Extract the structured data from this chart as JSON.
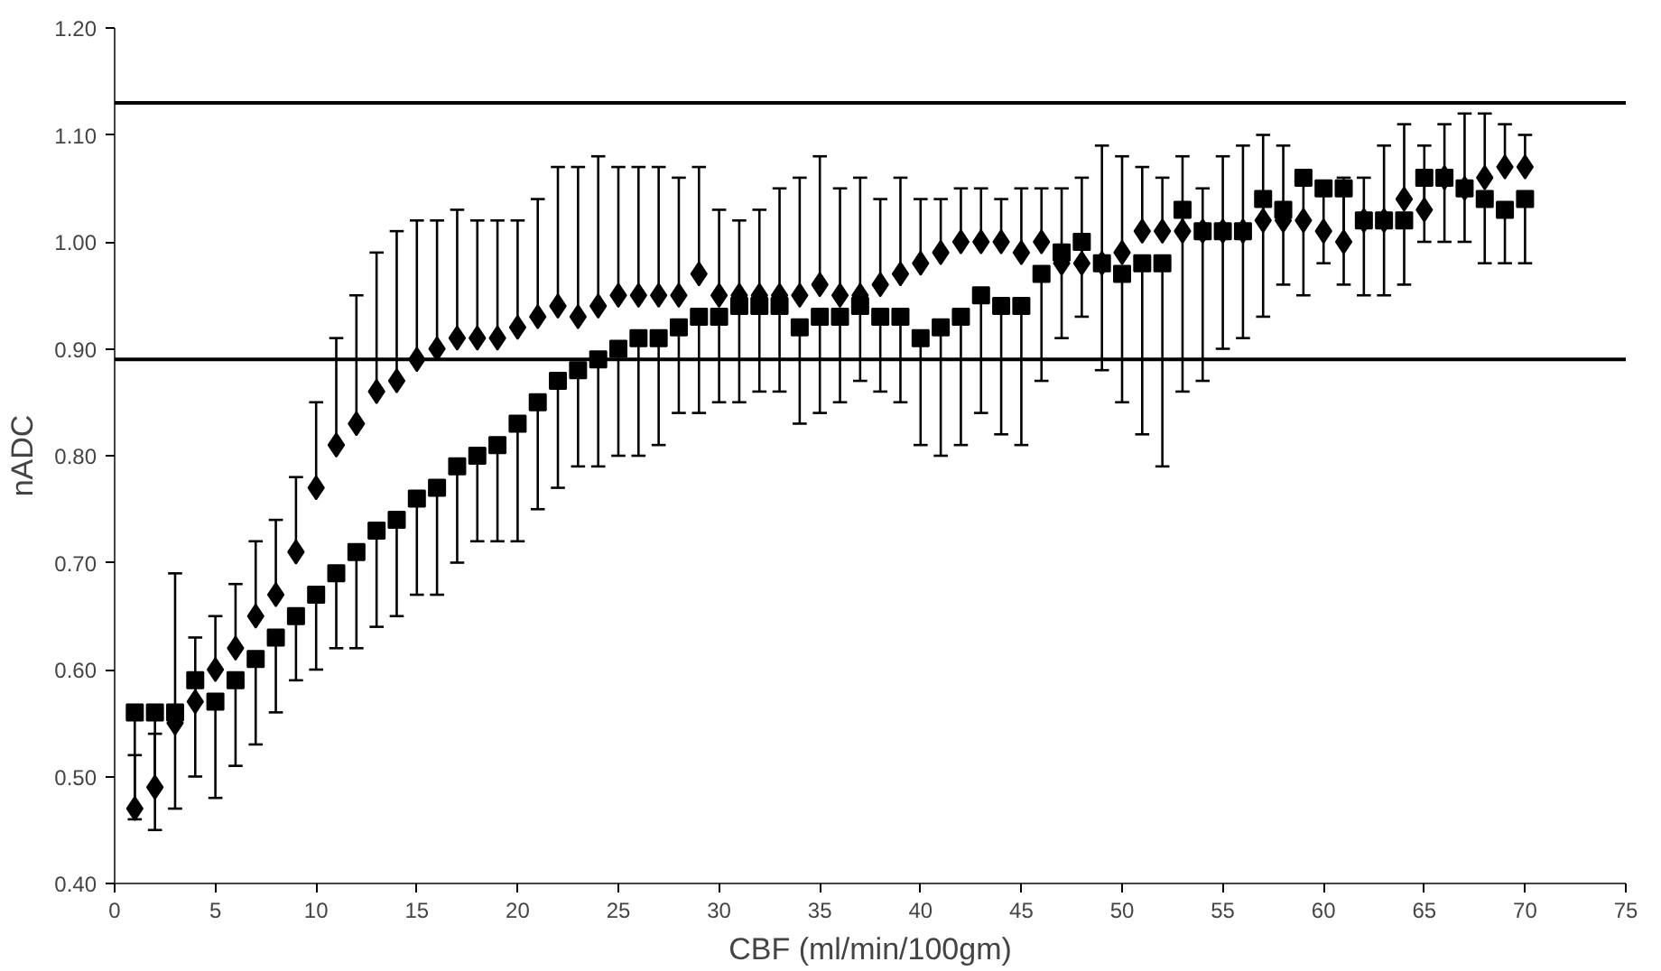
{
  "chart_data": {
    "type": "scatter",
    "xlabel": "CBF (ml/min/100gm)",
    "ylabel": "nADC",
    "x": [
      1,
      2,
      3,
      4,
      5,
      6,
      7,
      8,
      9,
      10,
      11,
      12,
      13,
      14,
      15,
      16,
      17,
      18,
      19,
      20,
      21,
      22,
      23,
      24,
      25,
      26,
      27,
      28,
      29,
      30,
      31,
      32,
      33,
      34,
      35,
      36,
      37,
      38,
      39,
      40,
      41,
      42,
      43,
      44,
      45,
      46,
      47,
      48,
      49,
      50,
      51,
      52,
      53,
      54,
      55,
      56,
      57,
      58,
      59,
      60,
      61,
      62,
      63,
      64,
      65,
      66,
      67,
      68,
      69,
      70
    ],
    "series": [
      {
        "color": "#000000",
        "marker": "diamond",
        "values": [
          0.47,
          0.49,
          0.55,
          0.57,
          0.6,
          0.62,
          0.65,
          0.67,
          0.71,
          0.77,
          0.81,
          0.83,
          0.86,
          0.87,
          0.89,
          0.9,
          0.91,
          0.91,
          0.91,
          0.92,
          0.93,
          0.94,
          0.93,
          0.94,
          0.95,
          0.95,
          0.95,
          0.95,
          0.97,
          0.95,
          0.95,
          0.95,
          0.95,
          0.95,
          0.96,
          0.95,
          0.95,
          0.96,
          0.97,
          0.98,
          0.99,
          1.0,
          1.0,
          1.0,
          0.99,
          1.0,
          0.98,
          0.98,
          0.98,
          0.99,
          1.01,
          1.01,
          1.01,
          1.01,
          1.01,
          1.01,
          1.02,
          1.02,
          1.02,
          1.01,
          1.0,
          1.02,
          1.02,
          1.04,
          1.03,
          1.06,
          1.05,
          1.06,
          1.07,
          1.07
        ],
        "errors": [
          [
            0.47,
            0.52
          ],
          [
            0.49,
            0.54
          ],
          [
            0.55,
            0.69
          ],
          [
            0.57,
            0.63
          ],
          [
            0.6,
            0.65
          ],
          [
            0.62,
            0.68
          ],
          [
            0.65,
            0.72
          ],
          [
            0.67,
            0.74
          ],
          [
            0.71,
            0.78
          ],
          [
            0.77,
            0.85
          ],
          [
            0.81,
            0.91
          ],
          [
            0.83,
            0.95
          ],
          [
            0.86,
            0.99
          ],
          [
            0.87,
            1.01
          ],
          [
            0.89,
            1.02
          ],
          [
            0.9,
            1.02
          ],
          [
            0.91,
            1.03
          ],
          [
            0.91,
            1.02
          ],
          [
            0.91,
            1.02
          ],
          [
            0.92,
            1.02
          ],
          [
            0.93,
            1.04
          ],
          [
            0.94,
            1.07
          ],
          [
            0.93,
            1.07
          ],
          [
            0.94,
            1.08
          ],
          [
            0.95,
            1.07
          ],
          [
            0.95,
            1.07
          ],
          [
            0.95,
            1.07
          ],
          [
            0.95,
            1.06
          ],
          [
            0.97,
            1.07
          ],
          [
            0.95,
            1.03
          ],
          [
            0.95,
            1.02
          ],
          [
            0.95,
            1.03
          ],
          [
            0.95,
            1.05
          ],
          [
            0.95,
            1.06
          ],
          [
            0.96,
            1.08
          ],
          [
            0.95,
            1.05
          ],
          [
            0.95,
            1.06
          ],
          [
            0.96,
            1.04
          ],
          [
            0.97,
            1.06
          ],
          [
            0.98,
            1.04
          ],
          [
            0.99,
            1.04
          ],
          [
            1.0,
            1.05
          ],
          [
            1.0,
            1.05
          ],
          [
            1.0,
            1.04
          ],
          [
            0.99,
            1.05
          ],
          [
            1.0,
            1.05
          ],
          [
            0.98,
            1.05
          ],
          [
            0.98,
            1.06
          ],
          [
            0.98,
            1.09
          ],
          [
            0.99,
            1.08
          ],
          [
            1.01,
            1.07
          ],
          [
            1.01,
            1.06
          ],
          [
            1.01,
            1.08
          ],
          [
            1.01,
            1.05
          ],
          [
            1.01,
            1.08
          ],
          [
            1.01,
            1.09
          ],
          [
            1.02,
            1.1
          ],
          [
            1.02,
            1.09
          ],
          [
            1.02,
            1.02
          ],
          [
            1.01,
            1.01
          ],
          [
            1.0,
            1.06
          ],
          [
            1.02,
            1.06
          ],
          [
            1.02,
            1.09
          ],
          [
            1.04,
            1.11
          ],
          [
            1.03,
            1.09
          ],
          [
            1.06,
            1.11
          ],
          [
            1.05,
            1.12
          ],
          [
            1.06,
            1.12
          ],
          [
            1.07,
            1.11
          ],
          [
            1.07,
            1.1
          ]
        ]
      },
      {
        "color": "#000000",
        "marker": "square",
        "values": [
          0.56,
          0.56,
          0.56,
          0.59,
          0.57,
          0.59,
          0.61,
          0.63,
          0.65,
          0.67,
          0.69,
          0.71,
          0.73,
          0.74,
          0.76,
          0.77,
          0.79,
          0.8,
          0.81,
          0.83,
          0.85,
          0.87,
          0.88,
          0.89,
          0.9,
          0.91,
          0.91,
          0.92,
          0.93,
          0.93,
          0.94,
          0.94,
          0.94,
          0.92,
          0.93,
          0.93,
          0.94,
          0.93,
          0.93,
          0.91,
          0.92,
          0.93,
          0.95,
          0.94,
          0.94,
          0.97,
          0.99,
          1.0,
          0.98,
          0.97,
          0.98,
          0.98,
          1.03,
          1.01,
          1.01,
          1.01,
          1.04,
          1.03,
          1.06,
          1.05,
          1.05,
          1.02,
          1.02,
          1.02,
          1.06,
          1.06,
          1.05,
          1.04,
          1.03,
          1.04
        ],
        "errors": [
          [
            0.46,
            0.56
          ],
          [
            0.45,
            0.56
          ],
          [
            0.47,
            0.56
          ],
          [
            0.5,
            0.59
          ],
          [
            0.48,
            0.57
          ],
          [
            0.51,
            0.59
          ],
          [
            0.53,
            0.61
          ],
          [
            0.56,
            0.63
          ],
          [
            0.59,
            0.65
          ],
          [
            0.6,
            0.67
          ],
          [
            0.62,
            0.69
          ],
          [
            0.62,
            0.71
          ],
          [
            0.64,
            0.73
          ],
          [
            0.65,
            0.74
          ],
          [
            0.67,
            0.76
          ],
          [
            0.67,
            0.77
          ],
          [
            0.7,
            0.79
          ],
          [
            0.72,
            0.8
          ],
          [
            0.72,
            0.81
          ],
          [
            0.72,
            0.83
          ],
          [
            0.75,
            0.85
          ],
          [
            0.77,
            0.87
          ],
          [
            0.79,
            0.88
          ],
          [
            0.79,
            0.89
          ],
          [
            0.8,
            0.9
          ],
          [
            0.8,
            0.91
          ],
          [
            0.81,
            0.91
          ],
          [
            0.84,
            0.92
          ],
          [
            0.84,
            0.93
          ],
          [
            0.85,
            0.93
          ],
          [
            0.85,
            0.94
          ],
          [
            0.86,
            0.94
          ],
          [
            0.86,
            0.94
          ],
          [
            0.83,
            0.92
          ],
          [
            0.84,
            0.93
          ],
          [
            0.85,
            0.93
          ],
          [
            0.87,
            0.94
          ],
          [
            0.86,
            0.93
          ],
          [
            0.85,
            0.93
          ],
          [
            0.81,
            0.91
          ],
          [
            0.8,
            0.92
          ],
          [
            0.81,
            0.93
          ],
          [
            0.84,
            0.95
          ],
          [
            0.82,
            0.94
          ],
          [
            0.81,
            0.94
          ],
          [
            0.87,
            0.97
          ],
          [
            0.91,
            0.99
          ],
          [
            0.93,
            1.0
          ],
          [
            0.88,
            0.98
          ],
          [
            0.85,
            0.97
          ],
          [
            0.82,
            0.98
          ],
          [
            0.79,
            0.98
          ],
          [
            0.86,
            1.03
          ],
          [
            0.87,
            1.01
          ],
          [
            0.9,
            1.01
          ],
          [
            0.91,
            1.01
          ],
          [
            0.93,
            1.04
          ],
          [
            0.96,
            1.03
          ],
          [
            0.95,
            1.06
          ],
          [
            0.98,
            1.05
          ],
          [
            0.96,
            1.05
          ],
          [
            0.95,
            1.02
          ],
          [
            0.95,
            1.02
          ],
          [
            0.96,
            1.02
          ],
          [
            1.0,
            1.06
          ],
          [
            1.0,
            1.06
          ],
          [
            1.0,
            1.05
          ],
          [
            0.98,
            1.04
          ],
          [
            0.98,
            1.03
          ],
          [
            0.98,
            1.04
          ]
        ]
      }
    ],
    "xlim": [
      0,
      75
    ],
    "xticks": [
      0,
      5,
      10,
      15,
      20,
      25,
      30,
      35,
      40,
      45,
      50,
      55,
      60,
      65,
      70,
      75
    ],
    "ylim": [
      0.4,
      1.2
    ],
    "yticks": [
      {
        "value": 0.4,
        "label": "0.40"
      },
      {
        "value": 0.5,
        "label": "0.50"
      },
      {
        "value": 0.6,
        "label": "0.60"
      },
      {
        "value": 0.7,
        "label": "0.70"
      },
      {
        "value": 0.8,
        "label": "0.80"
      },
      {
        "value": 0.9,
        "label": "0.90"
      },
      {
        "value": 1.0,
        "label": "1.00"
      },
      {
        "value": 1.1,
        "label": "1.10"
      },
      {
        "value": 1.2,
        "label": "1.20"
      }
    ],
    "ref_lines": [
      {
        "axis": "y",
        "value": 1.13,
        "color": "#000000"
      },
      {
        "axis": "y",
        "value": 0.89,
        "color": "#000000"
      }
    ],
    "grid": false
  }
}
